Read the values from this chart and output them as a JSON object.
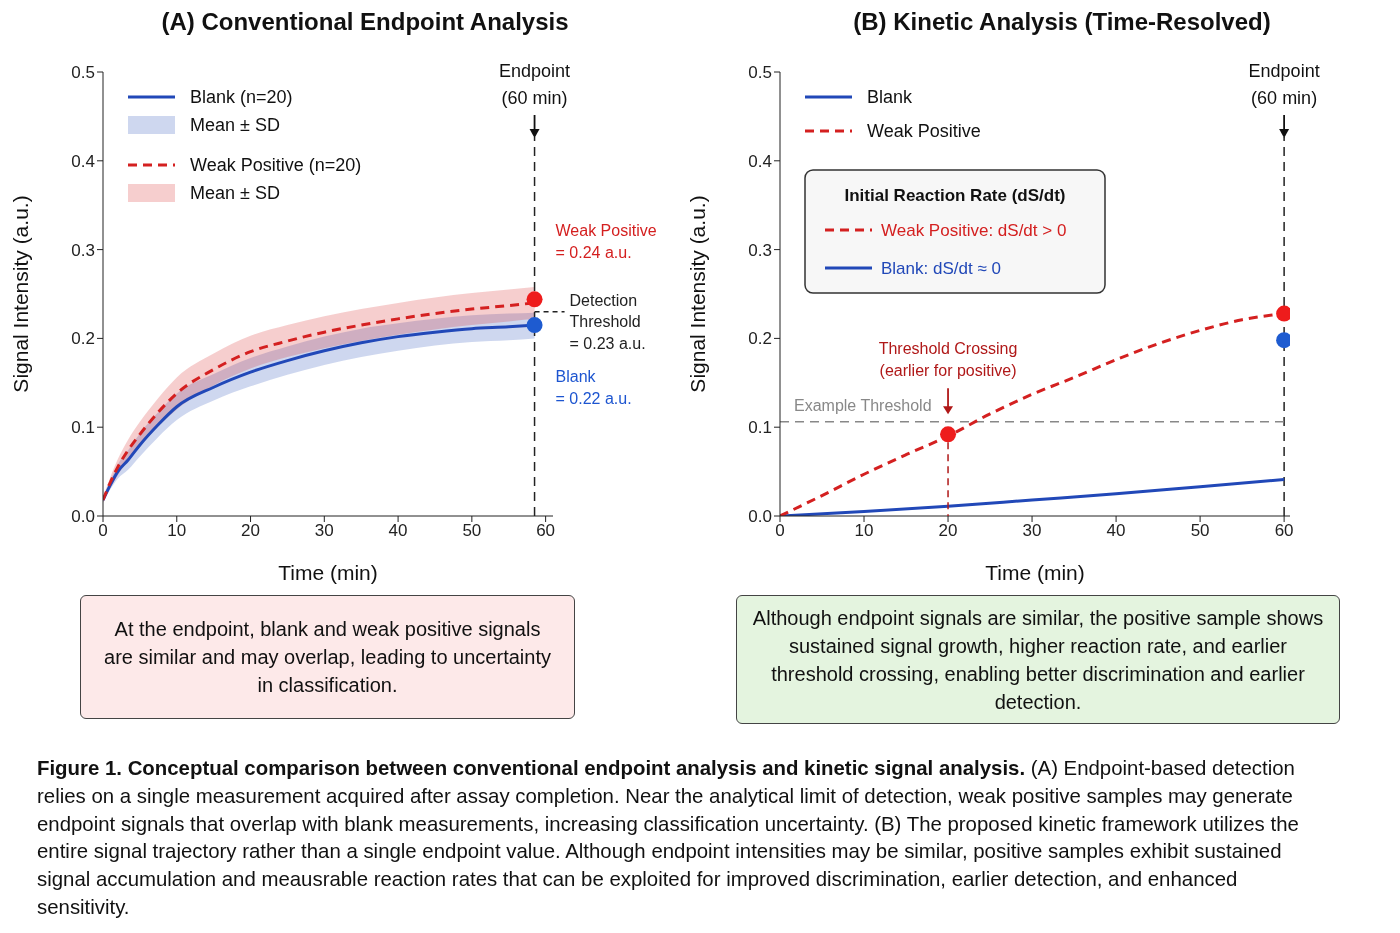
{
  "chart_data": [
    {
      "type": "line",
      "title": "(A) Conventional Endpoint Analysis",
      "xlabel": "Time (min)",
      "ylabel": "Signal Intensity (a.u.)",
      "xlim": [
        0,
        61
      ],
      "xticks": [
        0,
        10,
        20,
        30,
        40,
        50,
        60
      ],
      "ylim": [
        0,
        0.5
      ],
      "yticks": [
        {
          "value": 0,
          "label": "0.0"
        },
        0.1,
        0.2,
        0.3,
        0.4,
        0.5
      ],
      "legend": "top left",
      "series": [
        {
          "name": "Blank (n=20)",
          "color": "#2148b8",
          "x": [
            0,
            1,
            2,
            3.4,
            5,
            7.5,
            10,
            15,
            20,
            25,
            30,
            35,
            40,
            45,
            50,
            55,
            58.5
          ],
          "values": [
            0.018,
            0.035,
            0.05,
            0.063,
            0.08,
            0.103,
            0.123,
            0.145,
            0.162,
            0.175,
            0.186,
            0.195,
            0.202,
            0.207,
            0.211,
            0.213,
            0.215
          ],
          "lower": [
            0.015,
            0.03,
            0.042,
            0.052,
            0.067,
            0.089,
            0.108,
            0.13,
            0.146,
            0.159,
            0.17,
            0.179,
            0.186,
            0.192,
            0.196,
            0.198,
            0.2
          ],
          "upper": [
            0.021,
            0.04,
            0.058,
            0.074,
            0.093,
            0.117,
            0.138,
            0.16,
            0.178,
            0.191,
            0.202,
            0.211,
            0.217,
            0.222,
            0.226,
            0.228,
            0.229
          ]
        },
        {
          "name": "Weak Positive (n=20)",
          "color": "#d42020",
          "line_style": "dashed",
          "x": [
            0,
            1,
            2,
            3.4,
            5,
            7.5,
            10,
            15,
            20,
            25,
            30,
            35,
            40,
            45,
            50,
            55,
            58.5
          ],
          "values": [
            0.018,
            0.038,
            0.055,
            0.074,
            0.092,
            0.117,
            0.138,
            0.165,
            0.185,
            0.197,
            0.207,
            0.215,
            0.222,
            0.228,
            0.233,
            0.237,
            0.24
          ],
          "lower": [
            0.015,
            0.032,
            0.046,
            0.062,
            0.078,
            0.101,
            0.12,
            0.147,
            0.166,
            0.179,
            0.189,
            0.197,
            0.204,
            0.21,
            0.215,
            0.219,
            0.222
          ],
          "upper": [
            0.021,
            0.044,
            0.064,
            0.086,
            0.106,
            0.133,
            0.156,
            0.183,
            0.203,
            0.215,
            0.225,
            0.233,
            0.24,
            0.246,
            0.251,
            0.255,
            0.258
          ]
        },
        {
          "type": "scatter",
          "color": "#ee1c1c",
          "x": [
            58.5
          ],
          "values": [
            0.244
          ]
        },
        {
          "type": "scatter",
          "color": "#1e5bd0",
          "x": [
            58.5
          ],
          "values": [
            0.215
          ]
        }
      ],
      "ref_lines": [
        {
          "axis": "x",
          "value": 58.5,
          "label": "Endpoint\n(60 min)",
          "color": "#222222",
          "line_style": "dashed"
        }
      ],
      "annotations": [
        "Mean ± SD",
        "Mean ± SD",
        {
          "text": "Weak Positive\n= 0.24 a.u.",
          "x": 58.5,
          "y": 0.24
        },
        {
          "text": "Detection\nThreshold\n= 0.23 a.u.",
          "x": 58.5,
          "y": 0.23
        },
        "Blank\n= 0.22 a.u.",
        "At the endpoint, blank and weak positive signals are similar and may overlap, leading to uncertainty in classification."
      ]
    },
    {
      "type": "line",
      "title": "(B) Kinetic Analysis (Time-Resolved)",
      "xlabel": "Time (min)",
      "ylabel": "Signal Intensity (a.u.)",
      "xlim": [
        0,
        60.7
      ],
      "xticks": [
        0,
        10,
        20,
        30,
        40,
        50,
        60
      ],
      "ylim": [
        0,
        0.5
      ],
      "yticks": [
        {
          "value": 0,
          "label": "0.0"
        },
        0.1,
        0.2,
        0.3,
        0.4,
        0.5
      ],
      "legend": "top left",
      "series": [
        {
          "name": "Blank",
          "color": "#2148b8",
          "x": [
            0,
            10,
            20,
            30,
            40,
            50,
            60
          ],
          "values": [
            0,
            0.005,
            0.011,
            0.018,
            0.025,
            0.033,
            0.041
          ]
        },
        {
          "name": "Weak Positive",
          "color": "#d42020",
          "line_style": "dashed",
          "x": [
            0,
            5,
            10,
            15,
            20,
            25,
            30,
            35,
            40,
            45,
            50,
            55,
            60
          ],
          "values": [
            0,
            0.023,
            0.047,
            0.069,
            0.09,
            0.115,
            0.137,
            0.156,
            0.176,
            0.194,
            0.209,
            0.221,
            0.228
          ]
        },
        {
          "type": "scatter",
          "color": "#ee1c1c",
          "x": [
            20,
            60
          ],
          "values": [
            0.092,
            0.228
          ]
        },
        {
          "type": "scatter",
          "color": "#1e5bd0",
          "x": [
            60
          ],
          "values": [
            0.198
          ]
        }
      ],
      "ref_lines": [
        {
          "axis": "x",
          "value": 60,
          "label": "Endpoint\n(60 min)",
          "color": "#222222",
          "line_style": "dashed"
        },
        {
          "axis": "y",
          "value": 0.106,
          "label": "Example Threshold",
          "color": "#888888",
          "line_style": "dashed"
        }
      ],
      "annotations": [
        "Initial Reaction Rate (dS/dt)",
        "Weak Positive: dS/dt > 0",
        "Blank: dS/dt ≈ 0",
        "Threshold Crossing\n(earlier for positive)",
        "Although endpoint signals are similar, the positive sample shows sustained signal growth, higher reaction rate, and earlier threshold crossing, enabling better discrimination and earlier detection.",
        "Figure 1.  Conceptual comparison between conventional endpoint analysis and kinetic signal analysis.",
        "(A) Endpoint-based detection relies on a single measurement acquired after assay completion. Near the analytical limit of detection, weak positive samples may generate endpoint signals that overlap with blank measurements, increasing classification uncertainty. (B) The proposed kinetic framework utilizes the entire signal trajectory rather than a single endpoint value. Although endpoint intensities may be similar, positive samples exhibit sustained signal accumulation and meausrable reaction rates that can be exploited for improved discrimination, earlier detection, and enhanced sensitivity."
      ]
    }
  ]
}
